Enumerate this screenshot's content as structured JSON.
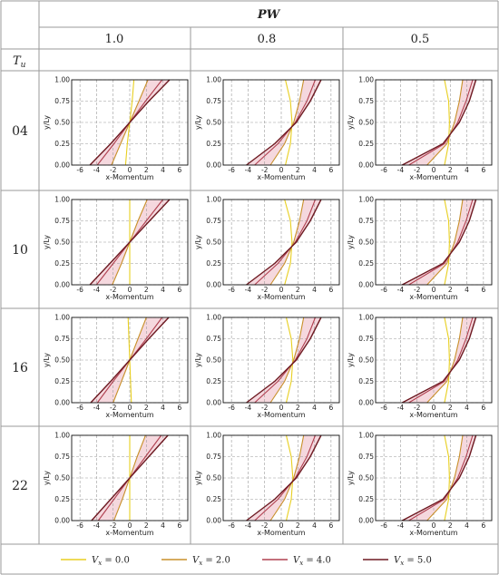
{
  "header": {
    "group_label": "PW",
    "columns": [
      "1.0",
      "0.8",
      "0.5"
    ],
    "row_axis_label": "T",
    "row_axis_subscript": "u",
    "rows": [
      "04",
      "10",
      "16",
      "22"
    ]
  },
  "legend": {
    "items": [
      {
        "var": "V",
        "sub": "x",
        "text": " = 0.0",
        "color": "#e8cf20"
      },
      {
        "var": "V",
        "sub": "x",
        "text": " = 2.0",
        "color": "#c8902a"
      },
      {
        "var": "V",
        "sub": "x",
        "text": " = 4.0",
        "color": "#b04050"
      },
      {
        "var": "V",
        "sub": "x",
        "text": " = 5.0",
        "color": "#6e1a22"
      }
    ]
  },
  "colors": {
    "band": "#f2cbd3",
    "grid": "#9a9a9a"
  },
  "chart_data": {
    "type": "line",
    "xlabel": "x-Momentum",
    "ylabel": "y/Ly",
    "xlim": [
      -7,
      7
    ],
    "ylim": [
      0,
      1
    ],
    "xticks": [
      -6,
      -4,
      -2,
      0,
      2,
      4,
      6
    ],
    "xtick_labels": [
      "-6",
      "-4",
      "-2",
      "0",
      "2",
      "4",
      "6"
    ],
    "yticks": [
      0,
      0.25,
      0.5,
      0.75,
      1
    ],
    "ytick_labels": [
      "0.00",
      "0.25",
      "0.50",
      "0.75",
      "1.00"
    ],
    "grid": true,
    "series_names": [
      "Vx = 0.0",
      "Vx = 2.0",
      "Vx = 4.0",
      "Vx = 5.0"
    ],
    "panels": [
      {
        "pw": "1.0",
        "tu": "04",
        "series": [
          {
            "name": "Vx = 0.0",
            "x": [
              -0.5,
              -0.3,
              0,
              0.3,
              0.5
            ],
            "y": [
              0,
              0.25,
              0.5,
              0.75,
              1
            ]
          },
          {
            "name": "Vx = 2.0",
            "x": [
              -2.2,
              -1.1,
              0,
              1.1,
              2.2
            ],
            "y": [
              0,
              0.25,
              0.5,
              0.75,
              1
            ]
          },
          {
            "name": "Vx = 4.0",
            "x": [
              -3.9,
              -1.9,
              0,
              1.9,
              3.9
            ],
            "y": [
              0,
              0.25,
              0.5,
              0.75,
              1
            ]
          },
          {
            "name": "Vx = 5.0",
            "x": [
              -4.8,
              -2.3,
              0,
              2.3,
              4.8
            ],
            "y": [
              0,
              0.25,
              0.5,
              0.75,
              1
            ]
          }
        ]
      },
      {
        "pw": "0.8",
        "tu": "04",
        "series": [
          {
            "name": "Vx = 0.0",
            "x": [
              0.5,
              1.1,
              1.3,
              1.1,
              0.5
            ],
            "y": [
              0,
              0.25,
              0.5,
              0.75,
              1
            ]
          },
          {
            "name": "Vx = 2.0",
            "x": [
              -1.3,
              0.4,
              1.5,
              2.2,
              2.7
            ],
            "y": [
              0,
              0.25,
              0.5,
              0.75,
              1
            ]
          },
          {
            "name": "Vx = 4.0",
            "x": [
              -3.2,
              -0.4,
              1.7,
              3.1,
              4.1
            ],
            "y": [
              0,
              0.25,
              0.5,
              0.75,
              1
            ]
          },
          {
            "name": "Vx = 5.0",
            "x": [
              -4.2,
              -0.8,
              1.8,
              3.5,
              4.8
            ],
            "y": [
              0,
              0.25,
              0.5,
              0.75,
              1
            ]
          }
        ]
      },
      {
        "pw": "0.5",
        "tu": "04",
        "series": [
          {
            "name": "Vx = 0.0",
            "x": [
              1.3,
              1.8,
              1.9,
              1.8,
              1.3
            ],
            "y": [
              0,
              0.25,
              0.5,
              0.75,
              1
            ]
          },
          {
            "name": "Vx = 2.0",
            "x": [
              -0.8,
              1.6,
              2.5,
              3.1,
              3.5
            ],
            "y": [
              0,
              0.25,
              0.5,
              0.75,
              1
            ]
          },
          {
            "name": "Vx = 4.0",
            "x": [
              -3.0,
              1.3,
              2.9,
              3.9,
              4.7
            ],
            "y": [
              0,
              0.25,
              0.5,
              0.75,
              1
            ]
          },
          {
            "name": "Vx = 5.0",
            "x": [
              -3.8,
              1.1,
              3.1,
              4.3,
              5.1
            ],
            "y": [
              0,
              0.25,
              0.5,
              0.75,
              1
            ]
          }
        ]
      },
      {
        "pw": "1.0",
        "tu": "10",
        "series": [
          {
            "name": "Vx = 0.0",
            "x": [
              0,
              0,
              0,
              0,
              0
            ],
            "y": [
              0,
              0.25,
              0.5,
              0.75,
              1
            ]
          },
          {
            "name": "Vx = 2.0",
            "x": [
              -2.1,
              -1.0,
              0,
              1.0,
              2.1
            ],
            "y": [
              0,
              0.25,
              0.5,
              0.75,
              1
            ]
          },
          {
            "name": "Vx = 4.0",
            "x": [
              -4.0,
              -2.0,
              0,
              2.0,
              4.0
            ],
            "y": [
              0,
              0.25,
              0.5,
              0.75,
              1
            ]
          },
          {
            "name": "Vx = 5.0",
            "x": [
              -4.8,
              -2.4,
              0,
              2.4,
              4.8
            ],
            "y": [
              0,
              0.25,
              0.5,
              0.75,
              1
            ]
          }
        ]
      },
      {
        "pw": "0.8",
        "tu": "10",
        "series": [
          {
            "name": "Vx = 0.0",
            "x": [
              0.4,
              1.1,
              1.3,
              1.1,
              0.4
            ],
            "y": [
              0,
              0.25,
              0.5,
              0.75,
              1
            ]
          },
          {
            "name": "Vx = 2.0",
            "x": [
              -1.3,
              0.4,
              1.5,
              2.2,
              2.7
            ],
            "y": [
              0,
              0.25,
              0.5,
              0.75,
              1
            ]
          },
          {
            "name": "Vx = 4.0",
            "x": [
              -3.2,
              -0.4,
              1.7,
              3.1,
              4.1
            ],
            "y": [
              0,
              0.25,
              0.5,
              0.75,
              1
            ]
          },
          {
            "name": "Vx = 5.0",
            "x": [
              -4.2,
              -0.8,
              1.8,
              3.5,
              4.8
            ],
            "y": [
              0,
              0.25,
              0.5,
              0.75,
              1
            ]
          }
        ]
      },
      {
        "pw": "0.5",
        "tu": "10",
        "series": [
          {
            "name": "Vx = 0.0",
            "x": [
              1.3,
              1.8,
              1.9,
              1.8,
              1.3
            ],
            "y": [
              0,
              0.25,
              0.5,
              0.75,
              1
            ]
          },
          {
            "name": "Vx = 2.0",
            "x": [
              -0.8,
              1.6,
              2.5,
              3.1,
              3.5
            ],
            "y": [
              0,
              0.25,
              0.5,
              0.75,
              1
            ]
          },
          {
            "name": "Vx = 4.0",
            "x": [
              -3.0,
              1.3,
              2.9,
              3.9,
              4.7
            ],
            "y": [
              0,
              0.25,
              0.5,
              0.75,
              1
            ]
          },
          {
            "name": "Vx = 5.0",
            "x": [
              -3.8,
              1.1,
              3.1,
              4.3,
              5.1
            ],
            "y": [
              0,
              0.25,
              0.5,
              0.75,
              1
            ]
          }
        ]
      },
      {
        "pw": "1.0",
        "tu": "16",
        "series": [
          {
            "name": "Vx = 0.0",
            "x": [
              0.2,
              0.1,
              0,
              -0.1,
              -0.2
            ],
            "y": [
              0,
              0.25,
              0.5,
              0.75,
              1
            ]
          },
          {
            "name": "Vx = 2.0",
            "x": [
              -2.0,
              -1.0,
              0,
              1.0,
              2.0
            ],
            "y": [
              0,
              0.25,
              0.5,
              0.75,
              1
            ]
          },
          {
            "name": "Vx = 4.0",
            "x": [
              -3.9,
              -2.0,
              0,
              2.0,
              3.9
            ],
            "y": [
              0,
              0.25,
              0.5,
              0.75,
              1
            ]
          },
          {
            "name": "Vx = 5.0",
            "x": [
              -4.7,
              -2.3,
              0,
              2.3,
              4.7
            ],
            "y": [
              0,
              0.25,
              0.5,
              0.75,
              1
            ]
          }
        ]
      },
      {
        "pw": "0.8",
        "tu": "16",
        "series": [
          {
            "name": "Vx = 0.0",
            "x": [
              0.6,
              1.2,
              1.4,
              1.2,
              0.6
            ],
            "y": [
              0,
              0.25,
              0.5,
              0.75,
              1
            ]
          },
          {
            "name": "Vx = 2.0",
            "x": [
              -1.3,
              0.4,
              1.5,
              2.2,
              2.7
            ],
            "y": [
              0,
              0.25,
              0.5,
              0.75,
              1
            ]
          },
          {
            "name": "Vx = 4.0",
            "x": [
              -3.2,
              -0.4,
              1.7,
              3.1,
              4.1
            ],
            "y": [
              0,
              0.25,
              0.5,
              0.75,
              1
            ]
          },
          {
            "name": "Vx = 5.0",
            "x": [
              -4.2,
              -0.8,
              1.8,
              3.5,
              4.8
            ],
            "y": [
              0,
              0.25,
              0.5,
              0.75,
              1
            ]
          }
        ]
      },
      {
        "pw": "0.5",
        "tu": "16",
        "series": [
          {
            "name": "Vx = 0.0",
            "x": [
              1.3,
              1.8,
              1.9,
              1.8,
              1.3
            ],
            "y": [
              0,
              0.25,
              0.5,
              0.75,
              1
            ]
          },
          {
            "name": "Vx = 2.0",
            "x": [
              -0.8,
              1.6,
              2.5,
              3.1,
              3.5
            ],
            "y": [
              0,
              0.25,
              0.5,
              0.75,
              1
            ]
          },
          {
            "name": "Vx = 4.0",
            "x": [
              -3.0,
              1.3,
              2.9,
              3.9,
              4.7
            ],
            "y": [
              0,
              0.25,
              0.5,
              0.75,
              1
            ]
          },
          {
            "name": "Vx = 5.0",
            "x": [
              -3.8,
              1.1,
              3.1,
              4.3,
              5.1
            ],
            "y": [
              0,
              0.25,
              0.5,
              0.75,
              1
            ]
          }
        ]
      },
      {
        "pw": "1.0",
        "tu": "22",
        "series": [
          {
            "name": "Vx = 0.0",
            "x": [
              0,
              0,
              0,
              0,
              0
            ],
            "y": [
              0,
              0.25,
              0.5,
              0.75,
              1
            ]
          },
          {
            "name": "Vx = 2.0",
            "x": [
              -1.9,
              -0.9,
              0,
              0.9,
              1.9
            ],
            "y": [
              0,
              0.25,
              0.5,
              0.75,
              1
            ]
          },
          {
            "name": "Vx = 4.0",
            "x": [
              -3.8,
              -1.9,
              0,
              1.9,
              3.8
            ],
            "y": [
              0,
              0.25,
              0.5,
              0.75,
              1
            ]
          },
          {
            "name": "Vx = 5.0",
            "x": [
              -4.6,
              -2.3,
              0,
              2.3,
              4.6
            ],
            "y": [
              0,
              0.25,
              0.5,
              0.75,
              1
            ]
          }
        ]
      },
      {
        "pw": "0.8",
        "tu": "22",
        "series": [
          {
            "name": "Vx = 0.0",
            "x": [
              0.6,
              1.2,
              1.4,
              1.2,
              0.6
            ],
            "y": [
              0,
              0.25,
              0.5,
              0.75,
              1
            ]
          },
          {
            "name": "Vx = 2.0",
            "x": [
              -1.3,
              0.4,
              1.5,
              2.2,
              2.7
            ],
            "y": [
              0,
              0.25,
              0.5,
              0.75,
              1
            ]
          },
          {
            "name": "Vx = 4.0",
            "x": [
              -3.2,
              -0.4,
              1.7,
              3.1,
              4.1
            ],
            "y": [
              0,
              0.25,
              0.5,
              0.75,
              1
            ]
          },
          {
            "name": "Vx = 5.0",
            "x": [
              -4.2,
              -0.8,
              1.8,
              3.5,
              4.8
            ],
            "y": [
              0,
              0.25,
              0.5,
              0.75,
              1
            ]
          }
        ]
      },
      {
        "pw": "0.5",
        "tu": "22",
        "series": [
          {
            "name": "Vx = 0.0",
            "x": [
              1.3,
              1.8,
              1.9,
              1.8,
              1.3
            ],
            "y": [
              0,
              0.25,
              0.5,
              0.75,
              1
            ]
          },
          {
            "name": "Vx = 2.0",
            "x": [
              -0.8,
              1.6,
              2.5,
              3.1,
              3.5
            ],
            "y": [
              0,
              0.25,
              0.5,
              0.75,
              1
            ]
          },
          {
            "name": "Vx = 4.0",
            "x": [
              -3.0,
              1.3,
              2.9,
              3.9,
              4.7
            ],
            "y": [
              0,
              0.25,
              0.5,
              0.75,
              1
            ]
          },
          {
            "name": "Vx = 5.0",
            "x": [
              -3.8,
              1.1,
              3.1,
              4.3,
              5.1
            ],
            "y": [
              0,
              0.25,
              0.5,
              0.75,
              1
            ]
          }
        ]
      }
    ]
  }
}
